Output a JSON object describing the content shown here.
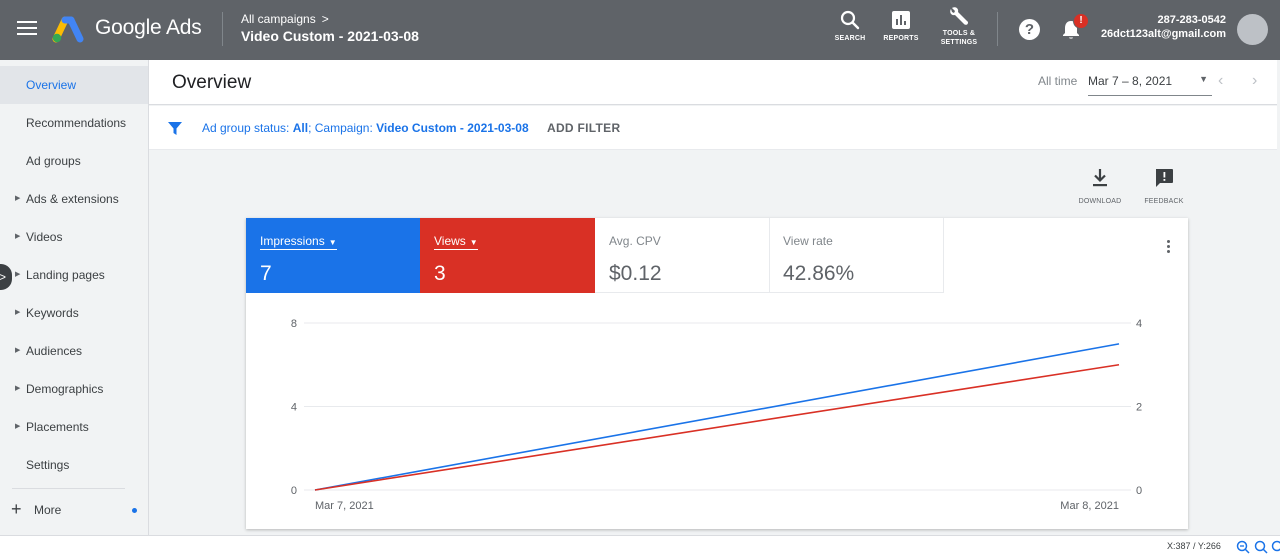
{
  "app": {
    "product_name": "Google Ads",
    "breadcrumb_parent": "All campaigns",
    "breadcrumb_title": "Video Custom - 2021-03-08",
    "colors": {
      "header": "#5f6368",
      "accent": "#1a73e8",
      "red": "#d93025"
    }
  },
  "toolbar": {
    "search_label": "SEARCH",
    "reports_label": "REPORTS",
    "tools_label_1": "TOOLS &",
    "tools_label_2": "SETTINGS"
  },
  "account": {
    "phone": "287-283-0542",
    "email": "26dct123alt@gmail.com",
    "notification_badge": "!"
  },
  "sidebar": {
    "items": [
      {
        "label": "Overview",
        "active": true,
        "expandable": false
      },
      {
        "label": "Recommendations",
        "active": false,
        "expandable": false
      },
      {
        "label": "Ad groups",
        "active": false,
        "expandable": false
      },
      {
        "label": "Ads & extensions",
        "active": false,
        "expandable": true
      },
      {
        "label": "Videos",
        "active": false,
        "expandable": true
      },
      {
        "label": "Landing pages",
        "active": false,
        "expandable": true
      },
      {
        "label": "Keywords",
        "active": false,
        "expandable": true
      },
      {
        "label": "Audiences",
        "active": false,
        "expandable": true
      },
      {
        "label": "Demographics",
        "active": false,
        "expandable": true
      },
      {
        "label": "Placements",
        "active": false,
        "expandable": true
      },
      {
        "label": "Settings",
        "active": false,
        "expandable": false
      }
    ],
    "more_label": "More"
  },
  "header": {
    "title": "Overview",
    "range_label": "All time",
    "range_value": "Mar 7 – 8, 2021"
  },
  "filter": {
    "prefix": "Ad group status: ",
    "status_value": "All",
    "campaign_prefix": "; Campaign: ",
    "campaign_value": "Video Custom - 2021-03-08",
    "add_filter_label": "ADD FILTER"
  },
  "utilities": {
    "download_label": "DOWNLOAD",
    "feedback_label": "FEEDBACK"
  },
  "metrics": [
    {
      "label": "Impressions",
      "value": "7",
      "selected": true,
      "color": "#1a73e8"
    },
    {
      "label": "Views",
      "value": "3",
      "selected": true,
      "color": "#d93025"
    },
    {
      "label": "Avg. CPV",
      "value": "$0.12",
      "selected": false
    },
    {
      "label": "View rate",
      "value": "42.86%",
      "selected": false
    }
  ],
  "chart_data": {
    "type": "line",
    "x": [
      "Mar 7, 2021",
      "Mar 8, 2021"
    ],
    "series": [
      {
        "name": "Impressions",
        "axis": "left",
        "color": "#1a73e8",
        "values": [
          0,
          7
        ]
      },
      {
        "name": "Views",
        "axis": "right",
        "color": "#d93025",
        "values": [
          0,
          3
        ]
      }
    ],
    "left_ticks": [
      "0",
      "4",
      "8"
    ],
    "right_ticks": [
      "0",
      "2",
      "4"
    ],
    "ylim_left": [
      0,
      8
    ],
    "ylim_right": [
      0,
      4
    ],
    "grid": true
  },
  "statusbar": {
    "coords": "X:387 / Y:266"
  }
}
